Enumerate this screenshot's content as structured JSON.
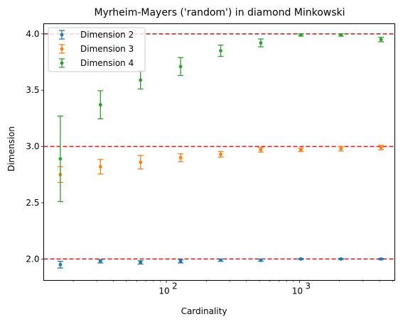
{
  "chart_data": {
    "type": "scatter",
    "title": "Myrheim-Mayers ('random') in diamond Minkowski",
    "xlabel": "Cardinality",
    "ylabel": "Dimension",
    "xscale": "log",
    "xlim": [
      12,
      5200
    ],
    "ylim": [
      1.81,
      4.09
    ],
    "x_ticks": [
      {
        "value": 100,
        "label": "10",
        "exp": "2"
      },
      {
        "value": 1000,
        "label": "10",
        "exp": "3"
      }
    ],
    "y_ticks": [
      {
        "value": 2.0,
        "label": "2.0"
      },
      {
        "value": 2.5,
        "label": "2.5"
      },
      {
        "value": 3.0,
        "label": "3.0"
      },
      {
        "value": 3.5,
        "label": "3.5"
      },
      {
        "value": 4.0,
        "label": "4.0"
      }
    ],
    "reference_lines": [
      2.0,
      3.0,
      4.0
    ],
    "reference_line_color": "#d62728",
    "legend_position": "upper left",
    "series": [
      {
        "name": "Dimension 2",
        "color": "#1f77b4",
        "x": [
          16,
          32,
          64,
          128,
          256,
          512,
          1024,
          2048,
          4096
        ],
        "y": [
          1.95,
          1.98,
          1.97,
          1.98,
          1.99,
          1.99,
          2.0,
          2.0,
          2.0
        ],
        "err": [
          0.03,
          0.015,
          0.015,
          0.015,
          0.01,
          0.01,
          0.005,
          0.005,
          0.005
        ]
      },
      {
        "name": "Dimension 3",
        "color": "#ff7f0e",
        "x": [
          16,
          32,
          64,
          128,
          256,
          512,
          1024,
          2048,
          4096
        ],
        "y": [
          2.75,
          2.82,
          2.86,
          2.9,
          2.93,
          2.97,
          2.97,
          2.98,
          2.99
        ],
        "err": [
          0.07,
          0.065,
          0.06,
          0.035,
          0.025,
          0.02,
          0.015,
          0.02,
          0.02
        ]
      },
      {
        "name": "Dimension 4",
        "color": "#2ca02c",
        "x": [
          16,
          32,
          64,
          128,
          256,
          512,
          1024,
          2048,
          4096
        ],
        "y": [
          2.89,
          3.37,
          3.59,
          3.71,
          3.85,
          3.92,
          3.99,
          3.99,
          3.95
        ],
        "err": [
          0.38,
          0.125,
          0.08,
          0.08,
          0.05,
          0.035,
          0.01,
          0.01,
          0.02
        ]
      }
    ]
  }
}
